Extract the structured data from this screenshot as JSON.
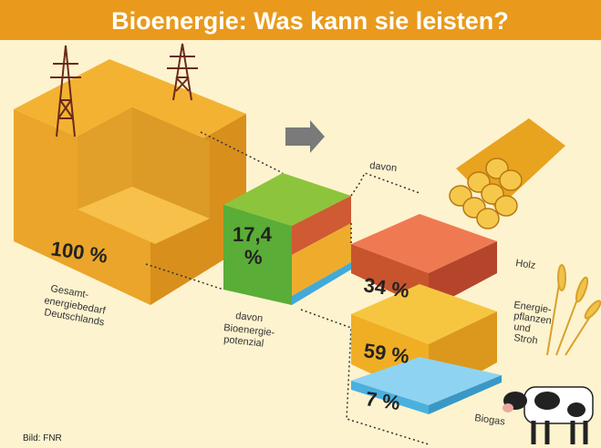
{
  "header": {
    "title": "Bioenergie: Was kann sie leisten?"
  },
  "total": {
    "value": "100 %",
    "label_lines": [
      "Gesamt-",
      "energiebedarf",
      "Deutschlands"
    ]
  },
  "bio": {
    "value_lines": [
      "17,4",
      "%"
    ],
    "label_lines": [
      "davon",
      "Bioenergie-",
      "potenzial"
    ]
  },
  "connector": "davon",
  "segments": [
    {
      "value": "34 %",
      "label_lines": [
        "Holz"
      ]
    },
    {
      "value": "59 %",
      "label_lines": [
        "Energie-",
        "pflanzen",
        "und",
        "Stroh"
      ]
    },
    {
      "value": "7 %",
      "label_lines": [
        "Biogas"
      ]
    }
  ],
  "credit": "Bild: FNR"
}
